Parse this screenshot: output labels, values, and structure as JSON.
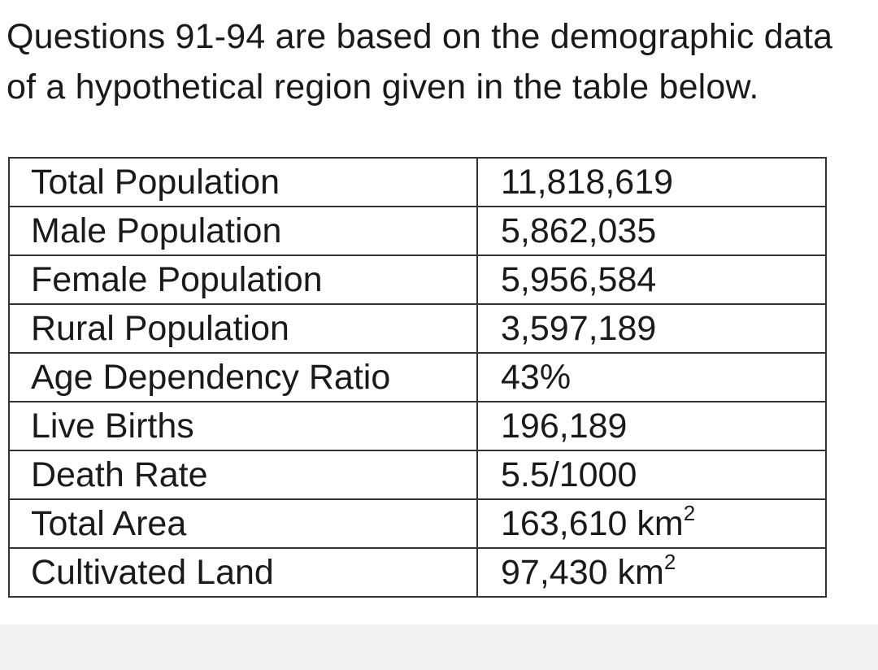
{
  "intro_text": "Questions 91-94 are based on the demographic data of a hypothetical region given in the table below.",
  "table": {
    "rows": [
      {
        "label": "Total Population",
        "value": "11,818,619",
        "unit": "",
        "unit_exp": ""
      },
      {
        "label": "Male Population",
        "value": "5,862,035",
        "unit": "",
        "unit_exp": ""
      },
      {
        "label": "Female Population",
        "value": "5,956,584",
        "unit": "",
        "unit_exp": ""
      },
      {
        "label": "Rural Population",
        "value": "3,597,189",
        "unit": "",
        "unit_exp": ""
      },
      {
        "label": "Age Dependency Ratio",
        "value": "43%",
        "unit": "",
        "unit_exp": ""
      },
      {
        "label": "Live Births",
        "value": "196,189",
        "unit": "",
        "unit_exp": ""
      },
      {
        "label": "Death Rate",
        "value": "5.5/1000",
        "unit": "",
        "unit_exp": ""
      },
      {
        "label": "Total Area",
        "value": "163,610",
        "unit": " km",
        "unit_exp": "2"
      },
      {
        "label": "Cultivated Land",
        "value": "97,430",
        "unit": " km",
        "unit_exp": "2"
      }
    ]
  }
}
